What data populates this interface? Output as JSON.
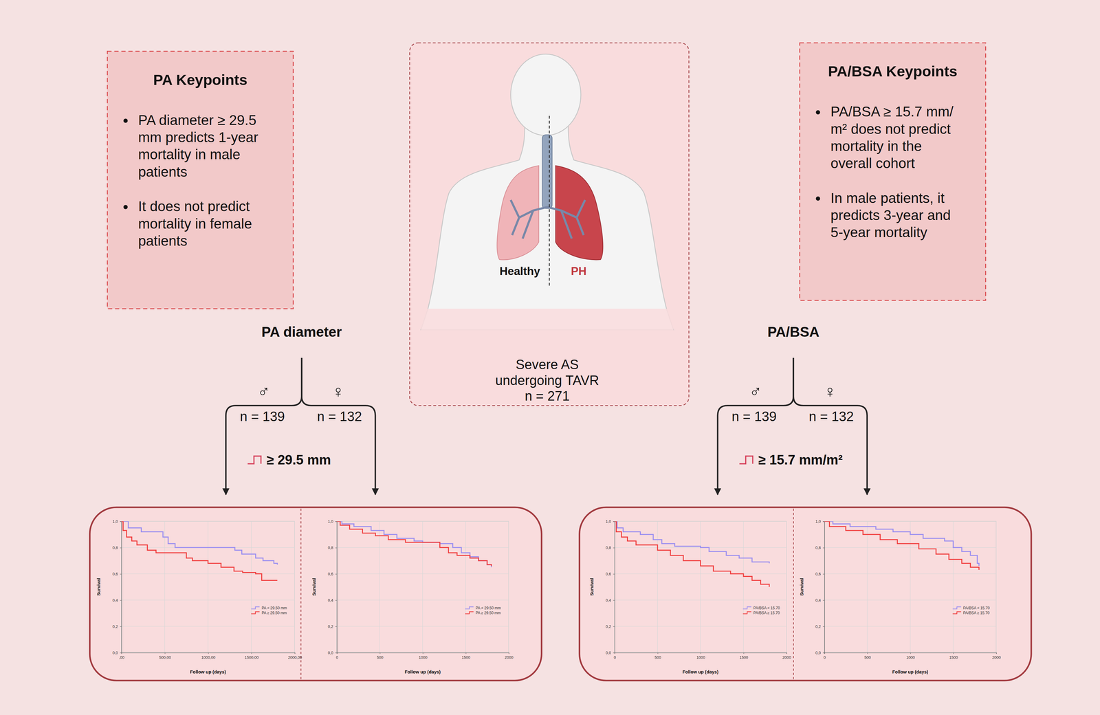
{
  "pa_keypoints": {
    "title": "PA Keypoints",
    "bullets": [
      [
        "PA diameter ≥ 29.5",
        "mm predicts 1-year",
        "mortality in male",
        "patients"
      ],
      [
        "It does not predict",
        "mortality in female",
        "patients"
      ]
    ]
  },
  "pa_bsa_keypoints": {
    "title": "PA/BSA Keypoints",
    "bullets": [
      [
        "PA/BSA ≥ 15.7 mm/",
        "m² does not predict",
        "mortality in the",
        "overall cohort"
      ],
      [
        "In male patients, it",
        "predicts 3-year and",
        "5-year mortality"
      ]
    ]
  },
  "center": {
    "healthy": "Healthy",
    "ph": "PH",
    "caption": [
      "Severe AS",
      "undergoing TAVR",
      "n = 271"
    ]
  },
  "branches": [
    {
      "title": "PA diameter",
      "male_symbol": "♂",
      "female_symbol": "♀",
      "male_n": "n = 139",
      "female_n": "n = 132",
      "threshold": "≥ 29.5 mm"
    },
    {
      "title": "PA/BSA",
      "male_symbol": "♂",
      "female_symbol": "♀",
      "male_n": "n = 139",
      "female_n": "n = 132",
      "threshold": "≥ 15.7 mm/m²"
    }
  ],
  "chart_data": [
    {
      "type": "line",
      "line_style": "step",
      "xlabel": "Follow up (days)",
      "ylabel": "Survival",
      "grid": true,
      "legend": "lower right",
      "xlim": [
        0,
        2000
      ],
      "ylim": [
        0,
        1
      ],
      "xticks": [
        {
          "value": 0,
          "label": ",00"
        },
        {
          "value": 500,
          "label": "500,00"
        },
        {
          "value": 1000,
          "label": "1000,00"
        },
        {
          "value": 1500,
          "label": "1500,00"
        },
        {
          "value": 2000,
          "label": "2000,00"
        }
      ],
      "yticks": [
        {
          "value": 0,
          "label": "0,0"
        },
        {
          "value": 0.2,
          "label": "0,2"
        },
        {
          "value": 0.4,
          "label": "0,4"
        },
        {
          "value": 0.6,
          "label": "0,6"
        },
        {
          "value": 0.8,
          "label": "0,8"
        },
        {
          "value": 1,
          "label": "1,0"
        }
      ],
      "series": [
        {
          "name": "PA < 29.50 mm",
          "color": "#9b8ff0",
          "x": [
            0,
            80,
            230,
            480,
            540,
            620,
            1310,
            1390,
            1550,
            1635,
            1760,
            1800
          ],
          "values": [
            1,
            0.95,
            0.92,
            0.88,
            0.83,
            0.8,
            0.78,
            0.75,
            0.72,
            0.7,
            0.68,
            0.67
          ]
        },
        {
          "name": "PA ≥ 29.50 mm",
          "color": "#f04040",
          "x": [
            0,
            20,
            60,
            120,
            180,
            300,
            400,
            750,
            820,
            1000,
            1150,
            1300,
            1400,
            1550,
            1620,
            1800
          ],
          "values": [
            1,
            0.93,
            0.88,
            0.85,
            0.82,
            0.78,
            0.76,
            0.72,
            0.7,
            0.68,
            0.65,
            0.62,
            0.61,
            0.6,
            0.55,
            0.55
          ]
        }
      ]
    },
    {
      "type": "line",
      "line_style": "step",
      "xlabel": "Follow up (days)",
      "ylabel": "Survival",
      "grid": true,
      "legend": "lower right",
      "xlim": [
        0,
        2000
      ],
      "ylim": [
        0,
        1
      ],
      "xticks": [
        0,
        500,
        1000,
        1500,
        2000
      ],
      "yticks": [
        {
          "value": 0,
          "label": "0,0"
        },
        {
          "value": 0.2,
          "label": "0,2"
        },
        {
          "value": 0.4,
          "label": "0,4"
        },
        {
          "value": 0.6,
          "label": "0,6"
        },
        {
          "value": 0.8,
          "label": "0,8"
        },
        {
          "value": 1,
          "label": "1,0"
        }
      ],
      "series": [
        {
          "name": "PA < 29.50 mm",
          "color": "#9b8ff0",
          "x": [
            0,
            60,
            200,
            400,
            550,
            700,
            900,
            1000,
            1200,
            1350,
            1450,
            1550,
            1650,
            1750,
            1800
          ],
          "values": [
            1,
            0.98,
            0.96,
            0.93,
            0.9,
            0.87,
            0.85,
            0.84,
            0.83,
            0.8,
            0.76,
            0.73,
            0.7,
            0.67,
            0.65
          ]
        },
        {
          "name": "PA ≥ 29.50 mm",
          "color": "#f04040",
          "x": [
            0,
            40,
            150,
            300,
            450,
            600,
            800,
            1200,
            1300,
            1400,
            1550,
            1650,
            1750,
            1800
          ],
          "values": [
            1,
            0.97,
            0.94,
            0.91,
            0.89,
            0.86,
            0.84,
            0.8,
            0.76,
            0.74,
            0.72,
            0.7,
            0.67,
            0.66
          ]
        }
      ]
    },
    {
      "type": "line",
      "line_style": "step",
      "xlabel": "Follow up (days)",
      "ylabel": "Survival",
      "grid": true,
      "legend": "lower right",
      "xlim": [
        0,
        2000
      ],
      "ylim": [
        0,
        1
      ],
      "xticks": [
        0,
        500,
        1000,
        1500,
        2000
      ],
      "yticks": [
        {
          "value": 0,
          "label": "0,0"
        },
        {
          "value": 0.2,
          "label": "0,2"
        },
        {
          "value": 0.4,
          "label": "0,4"
        },
        {
          "value": 0.6,
          "label": "0,6"
        },
        {
          "value": 0.8,
          "label": "0,8"
        },
        {
          "value": 1,
          "label": "1,0"
        }
      ],
      "series": [
        {
          "name": "PA/BSA < 15.70",
          "color": "#9b8ff0",
          "x": [
            0,
            30,
            100,
            300,
            450,
            550,
            700,
            1000,
            1100,
            1300,
            1450,
            1600,
            1800
          ],
          "values": [
            1,
            0.95,
            0.92,
            0.9,
            0.86,
            0.83,
            0.81,
            0.8,
            0.77,
            0.74,
            0.72,
            0.69,
            0.68
          ]
        },
        {
          "name": "PA/BSA ≥ 15.70",
          "color": "#f04040",
          "x": [
            0,
            20,
            80,
            150,
            250,
            500,
            650,
            800,
            1000,
            1150,
            1350,
            1500,
            1600,
            1700,
            1800
          ],
          "values": [
            1,
            0.92,
            0.88,
            0.85,
            0.82,
            0.78,
            0.74,
            0.7,
            0.66,
            0.62,
            0.6,
            0.58,
            0.55,
            0.52,
            0.5
          ]
        }
      ]
    },
    {
      "type": "line",
      "line_style": "step",
      "xlabel": "Follow up (days)",
      "ylabel": "Survival",
      "grid": true,
      "legend": "lower right",
      "xlim": [
        0,
        2000
      ],
      "ylim": [
        0,
        1
      ],
      "xticks": [
        0,
        500,
        1000,
        1500,
        2000
      ],
      "yticks": [
        {
          "value": 0,
          "label": "0,0"
        },
        {
          "value": 0.2,
          "label": "0,2"
        },
        {
          "value": 0.4,
          "label": "0,4"
        },
        {
          "value": 0.6,
          "label": "0,6"
        },
        {
          "value": 0.8,
          "label": "0,8"
        },
        {
          "value": 1,
          "label": "1,0"
        }
      ],
      "series": [
        {
          "name": "PA/BSA < 15.70",
          "color": "#9b8ff0",
          "x": [
            0,
            100,
            300,
            600,
            800,
            1000,
            1150,
            1400,
            1500,
            1600,
            1700,
            1780,
            1800
          ],
          "values": [
            1,
            0.98,
            0.96,
            0.94,
            0.92,
            0.9,
            0.87,
            0.85,
            0.8,
            0.77,
            0.74,
            0.68,
            0.66
          ]
        },
        {
          "name": "PA/BSA ≥ 15.70",
          "color": "#f04040",
          "x": [
            0,
            60,
            250,
            450,
            650,
            850,
            1100,
            1300,
            1450,
            1600,
            1700,
            1800
          ],
          "values": [
            1,
            0.96,
            0.93,
            0.9,
            0.86,
            0.83,
            0.79,
            0.75,
            0.71,
            0.68,
            0.65,
            0.63
          ]
        }
      ]
    }
  ]
}
